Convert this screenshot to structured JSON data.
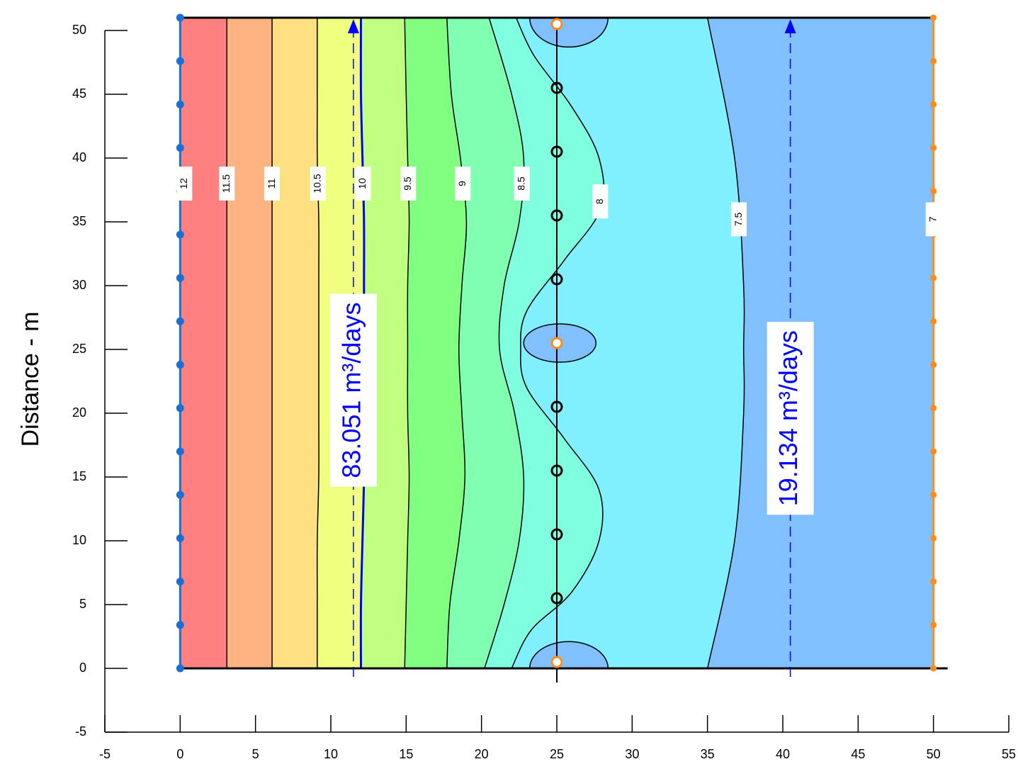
{
  "chart_data": {
    "type": "contour",
    "y_label": "Distance - m",
    "xlim": [
      -5,
      55
    ],
    "ylim": [
      -5,
      50
    ],
    "xticks": [
      -5,
      0,
      5,
      10,
      15,
      20,
      25,
      30,
      35,
      40,
      45,
      50,
      55
    ],
    "yticks": [
      -5,
      0,
      5,
      10,
      15,
      20,
      25,
      30,
      35,
      40,
      45,
      50
    ],
    "domain": {
      "x": [
        0,
        50
      ],
      "y": [
        0,
        51
      ]
    },
    "contours": [
      {
        "level": 12,
        "fill": "#ff8080",
        "x": [
          0,
          0
        ],
        "y": [
          0,
          51
        ]
      },
      {
        "level": 11.5,
        "fill": "#ffb380",
        "x": [
          3.1,
          3.1,
          3.1,
          3.1,
          3.1,
          3.1,
          3.1,
          3.1,
          3.1,
          3.1,
          3.1
        ],
        "y": [
          0,
          5,
          10,
          15,
          20,
          25,
          30,
          35,
          40,
          45,
          51
        ]
      },
      {
        "level": 11,
        "fill": "#ffe080",
        "x": [
          6.1,
          6.1,
          6.1,
          6.1,
          6.1,
          6.1,
          6.1,
          6.1,
          6.1,
          6.1,
          6.1
        ],
        "y": [
          0,
          5,
          10,
          15,
          20,
          25,
          30,
          35,
          40,
          45,
          51
        ]
      },
      {
        "level": 10.5,
        "fill": "#f0ff80",
        "x": [
          9.1,
          9.1,
          9.1,
          9.2,
          9.2,
          9.2,
          9.2,
          9.2,
          9.1,
          9.1,
          9.1
        ],
        "y": [
          0,
          5,
          10,
          15,
          20,
          25,
          30,
          35,
          40,
          45,
          51
        ]
      },
      {
        "level": 10,
        "fill": "#c0ff80",
        "line_color": "#0000ff",
        "x": [
          12.0,
          12.0,
          12.1,
          12.2,
          12.2,
          12.2,
          12.2,
          12.2,
          12.1,
          12.0,
          12.0
        ],
        "y": [
          0,
          5,
          10,
          15,
          20,
          25,
          30,
          35,
          40,
          45,
          51
        ]
      },
      {
        "level": 9.5,
        "fill": "#80ff80",
        "x": [
          14.9,
          15.0,
          15.1,
          15.2,
          15.1,
          15.1,
          15.1,
          15.2,
          15.1,
          15.0,
          14.9
        ],
        "y": [
          0,
          5,
          10,
          15,
          20,
          25,
          30,
          35,
          40,
          45,
          51
        ]
      },
      {
        "level": 9,
        "fill": "#80ffb0",
        "x": [
          17.7,
          17.9,
          18.5,
          18.9,
          18.7,
          18.5,
          18.7,
          19.0,
          18.6,
          18.0,
          17.7
        ],
        "y": [
          0,
          5,
          10,
          15,
          20,
          25,
          30,
          35,
          40,
          45,
          51
        ]
      },
      {
        "level": 8.5,
        "fill": "#80ffe0",
        "x": [
          20.2,
          21.5,
          22.5,
          22.8,
          22.2,
          21.2,
          21.5,
          22.5,
          22.8,
          22.0,
          20.5
        ],
        "y": [
          0,
          5,
          10,
          15,
          20,
          25,
          30,
          35,
          40,
          45,
          51
        ]
      },
      {
        "level": 8,
        "fill": "#80f0ff",
        "x": [
          22.0,
          23.3,
          26.0,
          27.8,
          27.8,
          25.5,
          23.0,
          22.6,
          23.0,
          25.5,
          27.9,
          27.8,
          26.0,
          23.5,
          22.3
        ],
        "y": [
          0,
          3,
          6,
          10,
          14,
          18,
          22,
          25,
          28,
          32,
          36,
          40,
          44,
          48,
          51
        ]
      },
      {
        "level": 7.5,
        "fill": "#80c0ff",
        "x": [
          35.0,
          36.8,
          37.4,
          37.4,
          37.4,
          36.8,
          35.0
        ],
        "y": [
          0,
          10,
          20,
          25,
          30,
          40,
          51
        ]
      },
      {
        "level": 7,
        "x": [
          50,
          50
        ],
        "y": [
          0,
          51
        ]
      }
    ],
    "well_zones": [
      {
        "cx": 25.8,
        "cy": 0,
        "rx": 2.6,
        "ry": 2.1,
        "fill": "#80c0ff"
      },
      {
        "cx": 25.2,
        "cy": 25.5,
        "rx": 2.4,
        "ry": 1.5,
        "fill": "#80c0ff"
      },
      {
        "cx": 25.8,
        "cy": 51,
        "rx": 2.6,
        "ry": 2.3,
        "fill": "#80c0ff"
      }
    ],
    "boundaries": [
      {
        "x": 0,
        "color": "#1a6fd6",
        "y": [
          0,
          3.4,
          6.8,
          10.2,
          13.6,
          17,
          20.4,
          23.8,
          27.2,
          30.6,
          34,
          37.4,
          40.8,
          44.2,
          47.6,
          51
        ]
      },
      {
        "x": 50,
        "color": "#ff8c1a",
        "y": [
          0,
          3.4,
          6.8,
          10.2,
          13.6,
          17,
          20.4,
          23.8,
          27.2,
          30.6,
          34,
          37.4,
          40.8,
          44.2,
          47.6,
          51
        ]
      }
    ],
    "wells_x": 25,
    "wells": [
      {
        "y": 0.5,
        "color": "#ff8c1a"
      },
      {
        "y": 5.5,
        "color": "#000000"
      },
      {
        "y": 10.5,
        "color": "#000000"
      },
      {
        "y": 15.5,
        "color": "#000000"
      },
      {
        "y": 20.5,
        "color": "#000000"
      },
      {
        "y": 25.5,
        "color": "#ff8c1a"
      },
      {
        "y": 30.5,
        "color": "#000000"
      },
      {
        "y": 35.5,
        "color": "#000000"
      },
      {
        "y": 40.5,
        "color": "#000000"
      },
      {
        "y": 45.5,
        "color": "#000000"
      },
      {
        "y": 50.5,
        "color": "#ff8c1a"
      }
    ],
    "flux_sections": [
      {
        "x": 11.5,
        "text": "83.051 m³/days"
      },
      {
        "x": 40.5,
        "text": "19.134 m³/days"
      }
    ]
  }
}
